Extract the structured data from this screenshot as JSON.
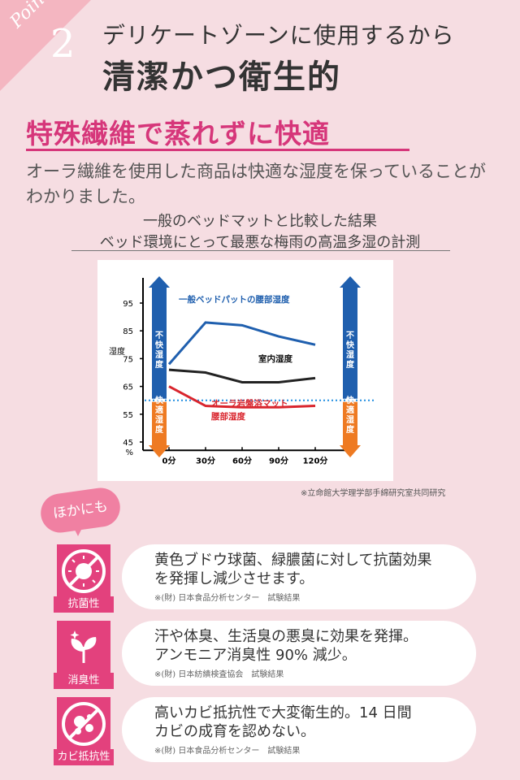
{
  "header": {
    "point_word": "Point",
    "point_number": "2",
    "title_line1": "デリケートゾーンに使用するから",
    "title_line2": "清潔かつ衛生的"
  },
  "section": {
    "subtitle": "特殊繊維で蒸れずに快適",
    "description": "オーラ繊維を使用した商品は快適な湿度を保っていることがわかりました。",
    "caption_line1": "一般のベッドマットと比較した結果",
    "caption_line2": "ベッド環境にとって最悪な梅雨の高温多湿の計測"
  },
  "chart_data": {
    "type": "line",
    "x": [
      "0分",
      "30分",
      "60分",
      "90分",
      "120分"
    ],
    "ylabel": "湿度",
    "yunit": "%",
    "yticks": [
      95,
      85,
      75,
      65,
      55,
      45
    ],
    "ylim": [
      42,
      97
    ],
    "comfort_threshold": 60,
    "series": [
      {
        "name": "一般ベッドパットの腰部湿度",
        "color": "#1f5fae",
        "values": [
          73,
          88,
          87,
          83,
          80
        ]
      },
      {
        "name": "室内湿度",
        "color": "#222222",
        "values": [
          71,
          70,
          66.5,
          66.5,
          68
        ]
      },
      {
        "name": "オーラ岩盤浴マット腰部湿度",
        "label_line1": "オーラ岩盤浴マット",
        "label_line2": "腰部湿度",
        "color": "#d9252d",
        "values": [
          65,
          58,
          57.5,
          57.5,
          58
        ]
      }
    ],
    "zones": {
      "uncomfortable": "不快湿度",
      "comfortable": "快適湿度"
    },
    "credit": "※立命館大学理学部手綿研究室共同研究"
  },
  "extras": {
    "badge": "ほかにも",
    "items": [
      {
        "label": "抗菌性",
        "icon": "antibacterial-icon",
        "text1": "黄色ブドウ球菌、緑膿菌に対して抗菌効果",
        "text2": "を発揮し減少させます。",
        "note": "※(財) 日本食品分析センター　試験結果"
      },
      {
        "label": "消臭性",
        "icon": "deodorant-icon",
        "text1": "汗や体臭、生活臭の悪臭に効果を発揮。",
        "text2": "アンモニア消臭性 90% 減少。",
        "note": "※(財) 日本紡績検査協会　試験結果"
      },
      {
        "label": "カビ抵抗性",
        "icon": "mold-resistance-icon",
        "text1": "高いカビ抵抗性で大変衛生的。14 日間",
        "text2": "カビの成育を認めない。",
        "note": "※(財) 日本食品分析センター　試験結果"
      }
    ]
  },
  "colors": {
    "accent_pink": "#d6367a",
    "icon_pink": "#e3417d",
    "background": "#f6dde2"
  }
}
